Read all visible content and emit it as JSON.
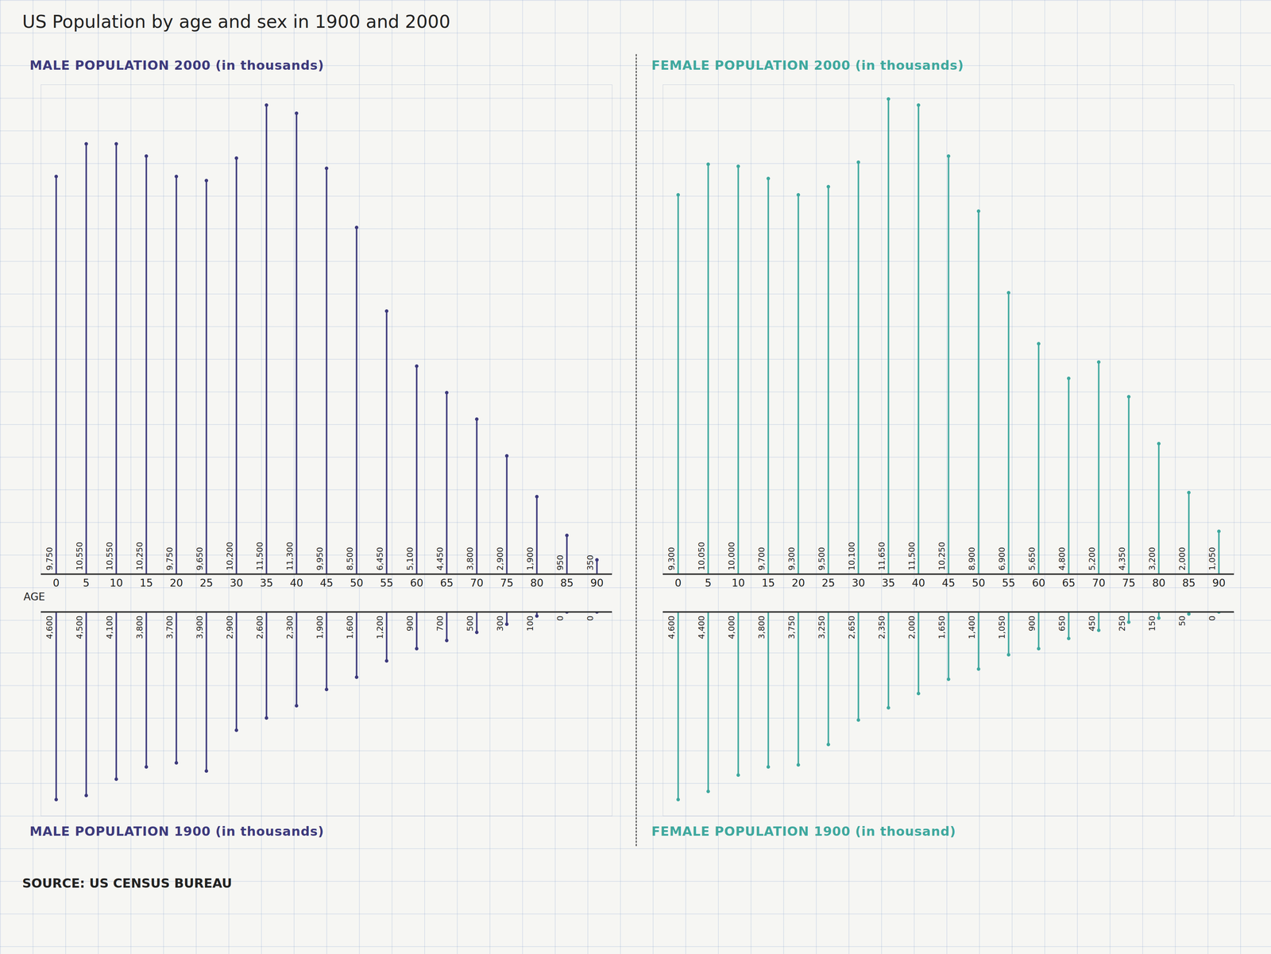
{
  "title": "US Population by age and sex in 1900 and 2000",
  "source": "SOURCE: US CENSUS BUREAU",
  "chart_data": [
    {
      "type": "bar",
      "title": "MALE POPULATION 2000 (in thousands)",
      "xlabel": "AGE",
      "categories": [
        0,
        5,
        10,
        15,
        20,
        25,
        30,
        35,
        40,
        45,
        50,
        55,
        60,
        65,
        70,
        75,
        80,
        85,
        90
      ],
      "values": [
        9750,
        10550,
        10550,
        10250,
        9750,
        9650,
        10200,
        11500,
        11300,
        9950,
        8500,
        6450,
        5100,
        4450,
        3800,
        2900,
        1900,
        950,
        350
      ],
      "value_labels": [
        "9,750",
        "10,550",
        "10,550",
        "10,250",
        "9,750",
        "9,650",
        "10,200",
        "11,500",
        "11,300",
        "9,950",
        "8,500",
        "6,450",
        "5,100",
        "4,450",
        "3,800",
        "2,900",
        "1,900",
        "950",
        "350"
      ],
      "color": "#3d3a7c",
      "ylim": [
        0,
        12000
      ],
      "data_labels": true,
      "tick_labels": "x"
    },
    {
      "type": "bar",
      "title": "FEMALE POPULATION 2000 (in thousands)",
      "categories": [
        0,
        5,
        10,
        15,
        20,
        25,
        30,
        35,
        40,
        45,
        50,
        55,
        60,
        65,
        70,
        75,
        80,
        85,
        90
      ],
      "values": [
        9300,
        10050,
        10000,
        9700,
        9300,
        9500,
        10100,
        11650,
        11500,
        10250,
        8900,
        6900,
        5650,
        4800,
        5200,
        4350,
        3200,
        2000,
        1050
      ],
      "value_labels": [
        "9,300",
        "10,050",
        "10,000",
        "9,700",
        "9,300",
        "9,500",
        "10,100",
        "11,650",
        "11,500",
        "10,250",
        "8,900",
        "6,900",
        "5,650",
        "4,800",
        "5,200",
        "4,350",
        "3,200",
        "2,000",
        "1,050"
      ],
      "color": "#3fa89e",
      "ylim": [
        0,
        12000
      ],
      "data_labels": true,
      "tick_labels": "x"
    },
    {
      "type": "bar",
      "title": "MALE POPULATION 1900 (in thousands)",
      "categories": [
        0,
        5,
        10,
        15,
        20,
        25,
        30,
        35,
        40,
        45,
        50,
        55,
        60,
        65,
        70,
        75,
        80,
        85,
        90
      ],
      "values": [
        4600,
        4500,
        4100,
        3800,
        3700,
        3900,
        2900,
        2600,
        2300,
        1900,
        1600,
        1200,
        900,
        700,
        500,
        300,
        100,
        0,
        0
      ],
      "value_labels": [
        "4,600",
        "4,500",
        "4,100",
        "3,800",
        "3,700",
        "3,900",
        "2,900",
        "2,600",
        "2,300",
        "1,900",
        "1,600",
        "1,200",
        "900",
        "700",
        "500",
        "300",
        "100",
        "0",
        "0"
      ],
      "color": "#3d3a7c",
      "ylim": [
        0,
        5000
      ],
      "data_labels": true,
      "tick_labels": false
    },
    {
      "type": "bar",
      "title": "FEMALE POPULATION 1900 (in thousand)",
      "categories": [
        0,
        5,
        10,
        15,
        20,
        25,
        30,
        35,
        40,
        45,
        50,
        55,
        60,
        65,
        70,
        75,
        80,
        85,
        90
      ],
      "values": [
        4600,
        4400,
        4000,
        3800,
        3750,
        3250,
        2650,
        2350,
        2000,
        1650,
        1400,
        1050,
        900,
        650,
        450,
        250,
        150,
        50,
        0
      ],
      "value_labels": [
        "4,600",
        "4,400",
        "4,000",
        "3,800",
        "3,750",
        "3,250",
        "2,650",
        "2,350",
        "2,000",
        "1,650",
        "1,400",
        "1,050",
        "900",
        "650",
        "450",
        "250",
        "150",
        "50",
        "0"
      ],
      "color": "#3fa89e",
      "ylim": [
        0,
        5000
      ],
      "data_labels": true,
      "tick_labels": false
    }
  ]
}
